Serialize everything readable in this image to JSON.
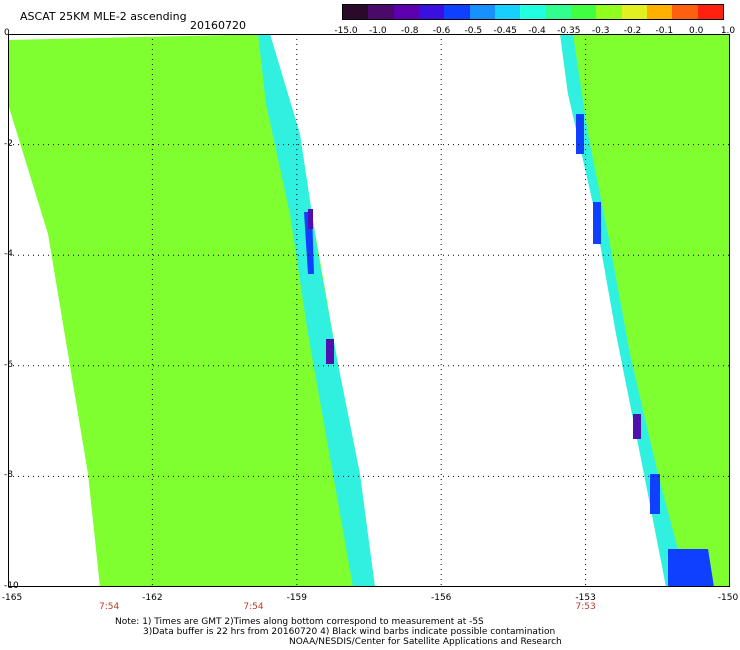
{
  "header": {
    "title": "ASCAT 25KM MLE-2 ascending",
    "date": "20160720"
  },
  "colorbar": {
    "ticks": [
      "-15.0",
      "-1.0",
      "-0.8",
      "-0.6",
      "-0.5",
      "-0.45",
      "-0.4",
      "-0.35",
      "-0.3",
      "-0.2",
      "-0.1",
      "0.0",
      "1.0"
    ],
    "colors": [
      "#2a0a2a",
      "#4a0a6a",
      "#5a00b0",
      "#3a10e0",
      "#1040ff",
      "#1890ff",
      "#18d0ff",
      "#20ffe0",
      "#30ff90",
      "#40ff40",
      "#90ff20",
      "#e0f020",
      "#ffb000",
      "#ff6010",
      "#ff2010"
    ]
  },
  "map": {
    "y_labels": [
      "0",
      "-2",
      "-4",
      "-6",
      "-8",
      "-10"
    ],
    "x_labels": [
      "-165",
      "-162",
      "-159",
      "-156",
      "-153",
      "-150"
    ],
    "x_range": [
      -165,
      -150
    ],
    "y_range": [
      0,
      -10
    ],
    "time_labels": [
      {
        "lon": -162.9,
        "text": "7:54"
      },
      {
        "lon": -159.9,
        "text": "7:54"
      },
      {
        "lon": -153.0,
        "text": "7:53"
      }
    ],
    "swath_colors": {
      "main": "#80ff30",
      "cyan": "#30f0e0",
      "blue": "#1040ff",
      "purple": "#5010b0"
    }
  },
  "notes": {
    "line1": "Note: 1) Times are GMT 2)Times along bottom correspond to measurement at -5S",
    "line2": "3)Data buffer is 22 hrs from 20160720 4) Black wind barbs indicate possible contamination",
    "line3": "NOAA/NESDIS/Center for Satellite Applications and Research"
  }
}
